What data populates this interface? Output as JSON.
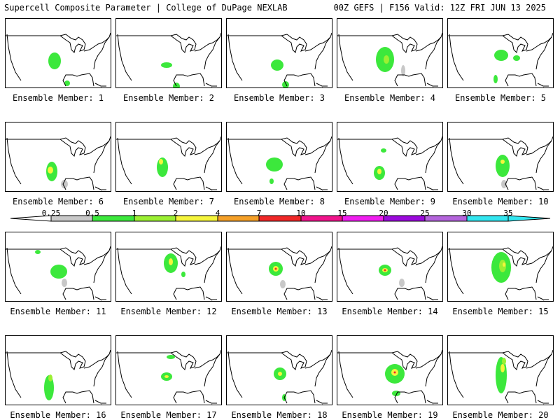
{
  "header": {
    "title_left": "Supercell Composite Parameter | College of DuPage NEXLAB",
    "title_right": "00Z GEFS | F156 Valid: 12Z FRI JUN 13 2025"
  },
  "colorbar": {
    "labels": [
      "0.25",
      "0.5",
      "1",
      "2",
      "4",
      "7",
      "10",
      "15",
      "20",
      "25",
      "30",
      "35"
    ],
    "colors": [
      "#c8c8c8",
      "#3ce83c",
      "#9bf032",
      "#f5f53c",
      "#f5a028",
      "#f02828",
      "#f0148c",
      "#f01ef0",
      "#9b0adc",
      "#b464dc",
      "#32e6f0"
    ]
  },
  "panels": [
    {
      "label": "Ensemble Member: 1"
    },
    {
      "label": "Ensemble Member: 2"
    },
    {
      "label": "Ensemble Member: 3"
    },
    {
      "label": "Ensemble Member: 4"
    },
    {
      "label": "Ensemble Member: 5"
    },
    {
      "label": "Ensemble Member: 6"
    },
    {
      "label": "Ensemble Member: 7"
    },
    {
      "label": "Ensemble Member: 8"
    },
    {
      "label": "Ensemble Member: 9"
    },
    {
      "label": "Ensemble Member: 10"
    },
    {
      "label": "Ensemble Member: 11"
    },
    {
      "label": "Ensemble Member: 12"
    },
    {
      "label": "Ensemble Member: 13"
    },
    {
      "label": "Ensemble Member: 14"
    },
    {
      "label": "Ensemble Member: 15"
    },
    {
      "label": "Ensemble Member: 16"
    },
    {
      "label": "Ensemble Member: 17"
    },
    {
      "label": "Ensemble Member: 18"
    },
    {
      "label": "Ensemble Member: 19"
    },
    {
      "label": "Ensemble Member: 20"
    }
  ]
}
